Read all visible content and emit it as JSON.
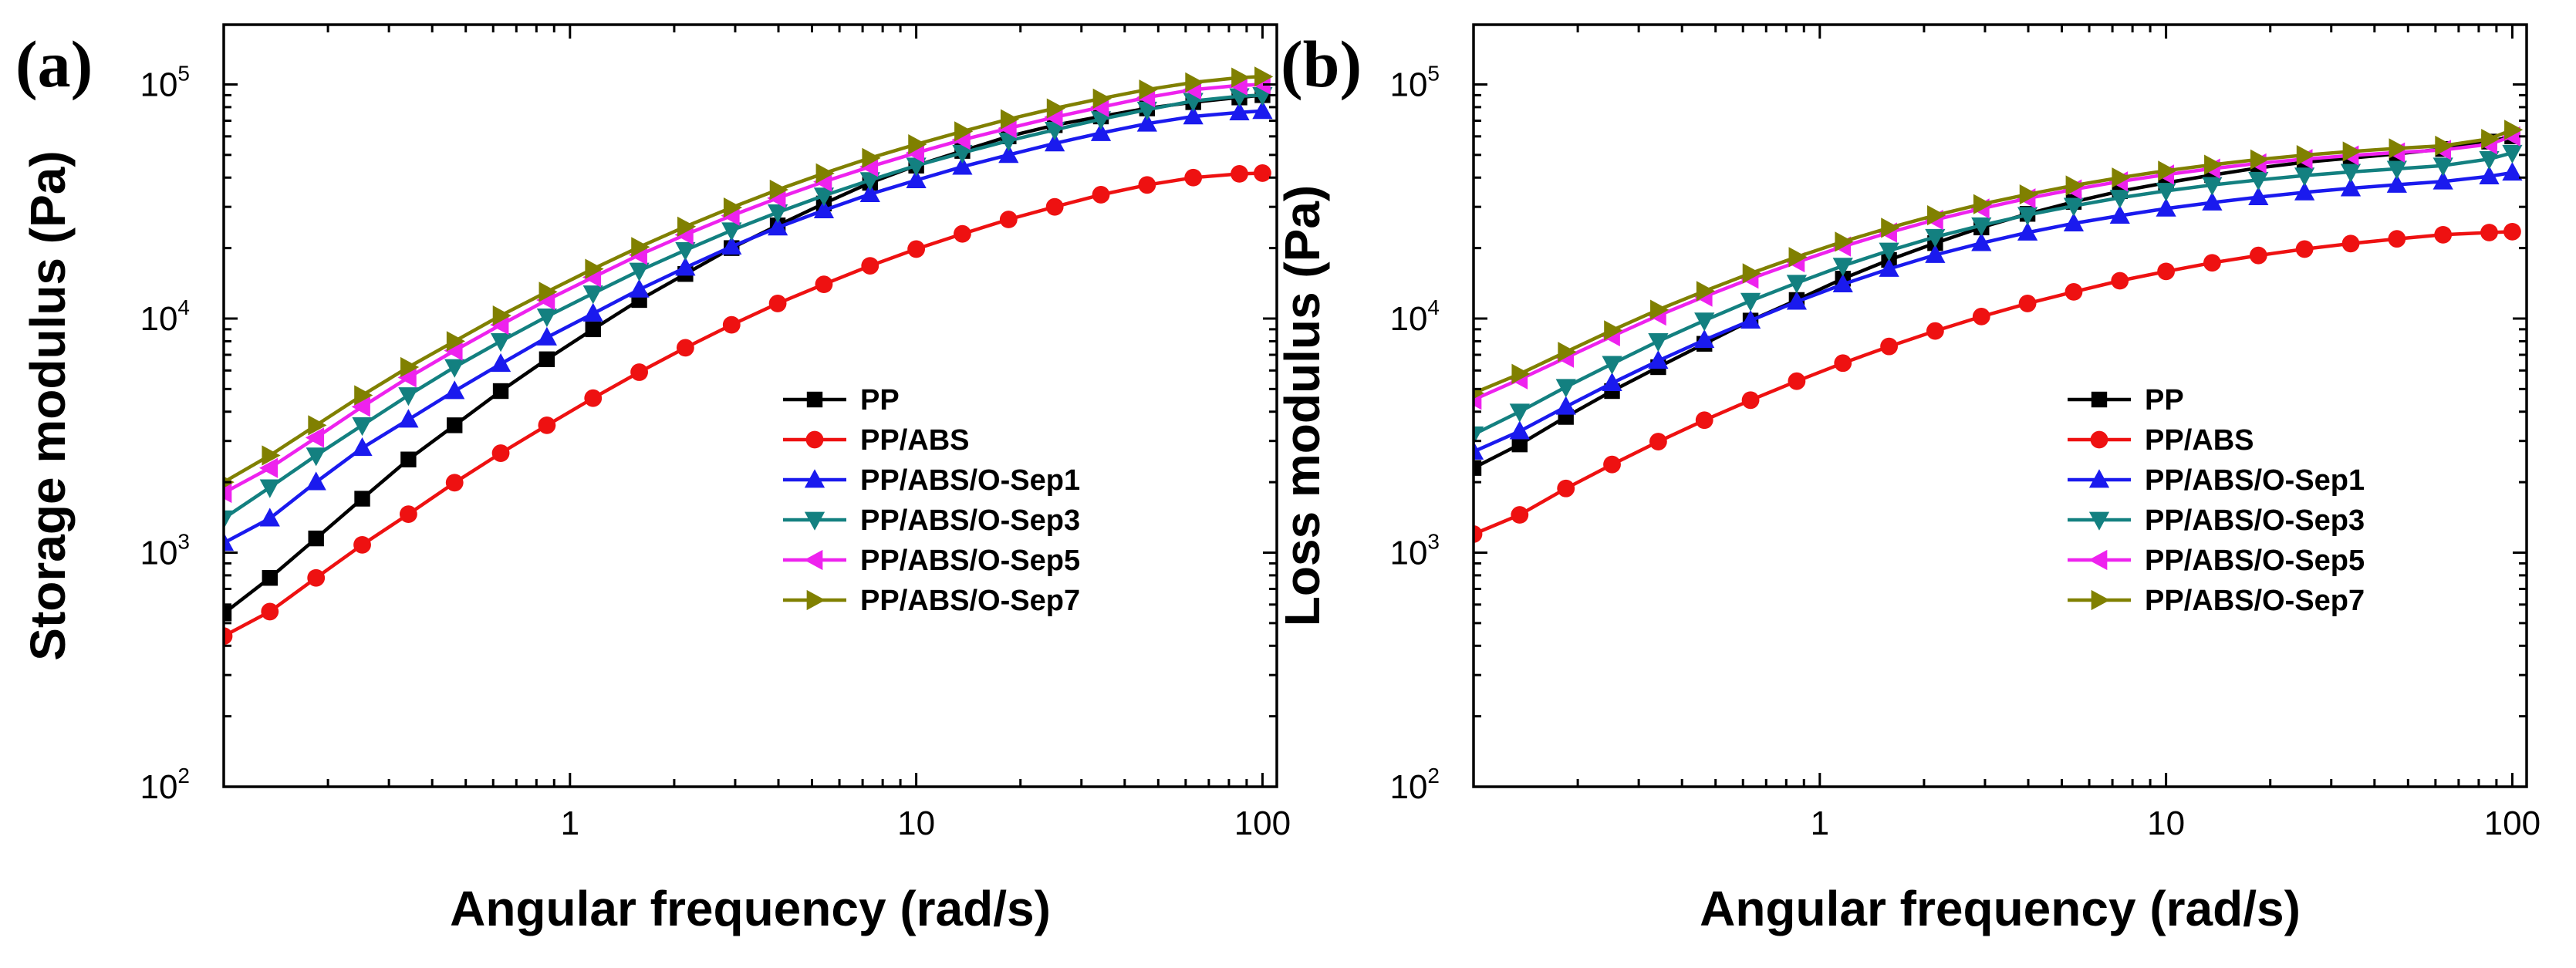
{
  "chart_data": [
    {
      "panel_label": "(a)",
      "type": "line",
      "xscale": "log",
      "yscale": "log",
      "xlabel": "Angular frequency (rad/s)",
      "ylabel": "Storage modulus (Pa)",
      "xlim": [
        0.1,
        110
      ],
      "ylim": [
        100,
        180000
      ],
      "x_ticks": [
        {
          "value": 1,
          "label": "1"
        },
        {
          "value": 10,
          "label": "10"
        },
        {
          "value": 100,
          "label": "100"
        }
      ],
      "y_ticks": [
        {
          "value": 100,
          "base": "10",
          "exp": "2"
        },
        {
          "value": 1000,
          "base": "10",
          "exp": "3"
        },
        {
          "value": 10000,
          "base": "10",
          "exp": "4"
        },
        {
          "value": 100000,
          "base": "10",
          "exp": "5"
        }
      ],
      "legend_position": "center-right",
      "x": [
        0.1,
        0.1359,
        0.1848,
        0.2512,
        0.3415,
        0.4642,
        0.631,
        0.8577,
        1.166,
        1.585,
        2.154,
        2.929,
        3.981,
        5.412,
        7.356,
        10,
        13.59,
        18.48,
        25.12,
        34.15,
        46.42,
        63.1,
        85.77,
        100
      ],
      "series": [
        {
          "name": "PP",
          "color": "#000000",
          "marker": "square",
          "values": [
            550,
            780,
            1150,
            1700,
            2500,
            3500,
            4900,
            6700,
            9000,
            12000,
            15500,
            20000,
            25000,
            31000,
            38000,
            45000,
            52000,
            60000,
            67000,
            73000,
            79000,
            84000,
            88000,
            90000
          ]
        },
        {
          "name": "PP/ABS",
          "color": "#ee1111",
          "marker": "circle",
          "values": [
            440,
            560,
            780,
            1080,
            1460,
            1990,
            2660,
            3500,
            4570,
            5900,
            7500,
            9400,
            11600,
            14000,
            16800,
            19800,
            23000,
            26500,
            30000,
            33800,
            37200,
            40000,
            41500,
            41800
          ]
        },
        {
          "name": "PP/ABS/O-Sep1",
          "color": "#1a1aee",
          "marker": "triangle-up",
          "values": [
            1100,
            1400,
            2000,
            2800,
            3700,
            4900,
            6400,
            8300,
            10500,
            13300,
            16500,
            20300,
            24500,
            29000,
            34000,
            39000,
            44500,
            50000,
            56000,
            62000,
            68000,
            73000,
            76000,
            77000
          ]
        },
        {
          "name": "PP/ABS/O-Sep3",
          "color": "#138080",
          "marker": "triangle-down",
          "values": [
            1400,
            1900,
            2600,
            3500,
            4700,
            6200,
            8000,
            10200,
            12800,
            16000,
            19600,
            23800,
            28400,
            33500,
            39000,
            45000,
            51000,
            57500,
            64000,
            71000,
            78000,
            85000,
            89000,
            90000
          ]
        },
        {
          "name": "PP/ABS/O-Sep5",
          "color": "#ee22ee",
          "marker": "triangle-left",
          "values": [
            1800,
            2300,
            3100,
            4200,
            5600,
            7300,
            9400,
            12000,
            15000,
            18700,
            22800,
            27500,
            32700,
            38400,
            44500,
            51000,
            58000,
            65000,
            72500,
            80000,
            88000,
            95000,
            99000,
            100000
          ]
        },
        {
          "name": "PP/ABS/O-Sep7",
          "color": "#808000",
          "marker": "triangle-right",
          "values": [
            2000,
            2600,
            3500,
            4700,
            6200,
            8000,
            10300,
            13000,
            16300,
            20200,
            24700,
            29800,
            35500,
            41700,
            48500,
            55500,
            63000,
            71000,
            79000,
            87000,
            95000,
            102000,
            107000,
            108000
          ]
        }
      ]
    },
    {
      "panel_label": "(b)",
      "type": "line",
      "xscale": "log",
      "yscale": "log",
      "xlabel": "Angular frequency (rad/s)",
      "ylabel": "Loss modulus (Pa)",
      "xlim": [
        0.1,
        110
      ],
      "ylim": [
        100,
        180000
      ],
      "x_ticks": [
        {
          "value": 1,
          "label": "1"
        },
        {
          "value": 10,
          "label": "10"
        },
        {
          "value": 100,
          "label": "100"
        }
      ],
      "y_ticks": [
        {
          "value": 100,
          "base": "10",
          "exp": "2"
        },
        {
          "value": 1000,
          "base": "10",
          "exp": "3"
        },
        {
          "value": 10000,
          "base": "10",
          "exp": "4"
        },
        {
          "value": 100000,
          "base": "10",
          "exp": "5"
        }
      ],
      "legend_position": "center-right",
      "x": [
        0.1,
        0.1359,
        0.1848,
        0.2512,
        0.3415,
        0.4642,
        0.631,
        0.8577,
        1.166,
        1.585,
        2.154,
        2.929,
        3.981,
        5.412,
        7.356,
        10,
        13.59,
        18.48,
        25.12,
        34.15,
        46.42,
        63.1,
        85.77,
        100
      ],
      "series": [
        {
          "name": "PP",
          "color": "#000000",
          "marker": "square",
          "values": [
            2300,
            2900,
            3800,
            4900,
            6200,
            7800,
            9800,
            12000,
            14800,
            17800,
            21000,
            24500,
            28000,
            31500,
            35000,
            38000,
            41000,
            44000,
            46500,
            48500,
            50500,
            53000,
            57000,
            60000
          ]
        },
        {
          "name": "PP/ABS",
          "color": "#ee1111",
          "marker": "circle",
          "values": [
            1200,
            1450,
            1880,
            2380,
            2980,
            3680,
            4480,
            5400,
            6450,
            7600,
            8850,
            10200,
            11600,
            13000,
            14500,
            15900,
            17300,
            18600,
            19800,
            20900,
            21900,
            22800,
            23300,
            23500
          ]
        },
        {
          "name": "PP/ABS/O-Sep1",
          "color": "#1a1aee",
          "marker": "triangle-up",
          "values": [
            2700,
            3300,
            4200,
            5300,
            6600,
            8100,
            9800,
            11800,
            14000,
            16300,
            18700,
            21000,
            23300,
            25500,
            27500,
            29500,
            31300,
            33000,
            34600,
            36000,
            37300,
            38500,
            40500,
            42000
          ]
        },
        {
          "name": "PP/ABS/O-Sep3",
          "color": "#138080",
          "marker": "triangle-down",
          "values": [
            3200,
            4000,
            5100,
            6400,
            8000,
            9800,
            11900,
            14200,
            16800,
            19500,
            22300,
            25000,
            27700,
            30300,
            32800,
            35100,
            37200,
            39100,
            40800,
            42300,
            43600,
            45000,
            48000,
            51000
          ]
        },
        {
          "name": "PP/ABS/O-Sep5",
          "color": "#ee22ee",
          "marker": "triangle-left",
          "values": [
            4500,
            5500,
            6800,
            8400,
            10300,
            12400,
            14800,
            17400,
            20300,
            23300,
            26400,
            29500,
            32600,
            35600,
            38500,
            41200,
            43700,
            46000,
            48000,
            49700,
            51200,
            52500,
            55500,
            60000
          ]
        },
        {
          "name": "PP/ABS/O-Sep7",
          "color": "#808000",
          "marker": "triangle-right",
          "values": [
            4800,
            5800,
            7200,
            8900,
            10900,
            13100,
            15600,
            18300,
            21300,
            24400,
            27600,
            30800,
            33900,
            37000,
            40000,
            42800,
            45400,
            47800,
            49900,
            51700,
            53300,
            54700,
            58500,
            64000
          ]
        }
      ]
    }
  ]
}
